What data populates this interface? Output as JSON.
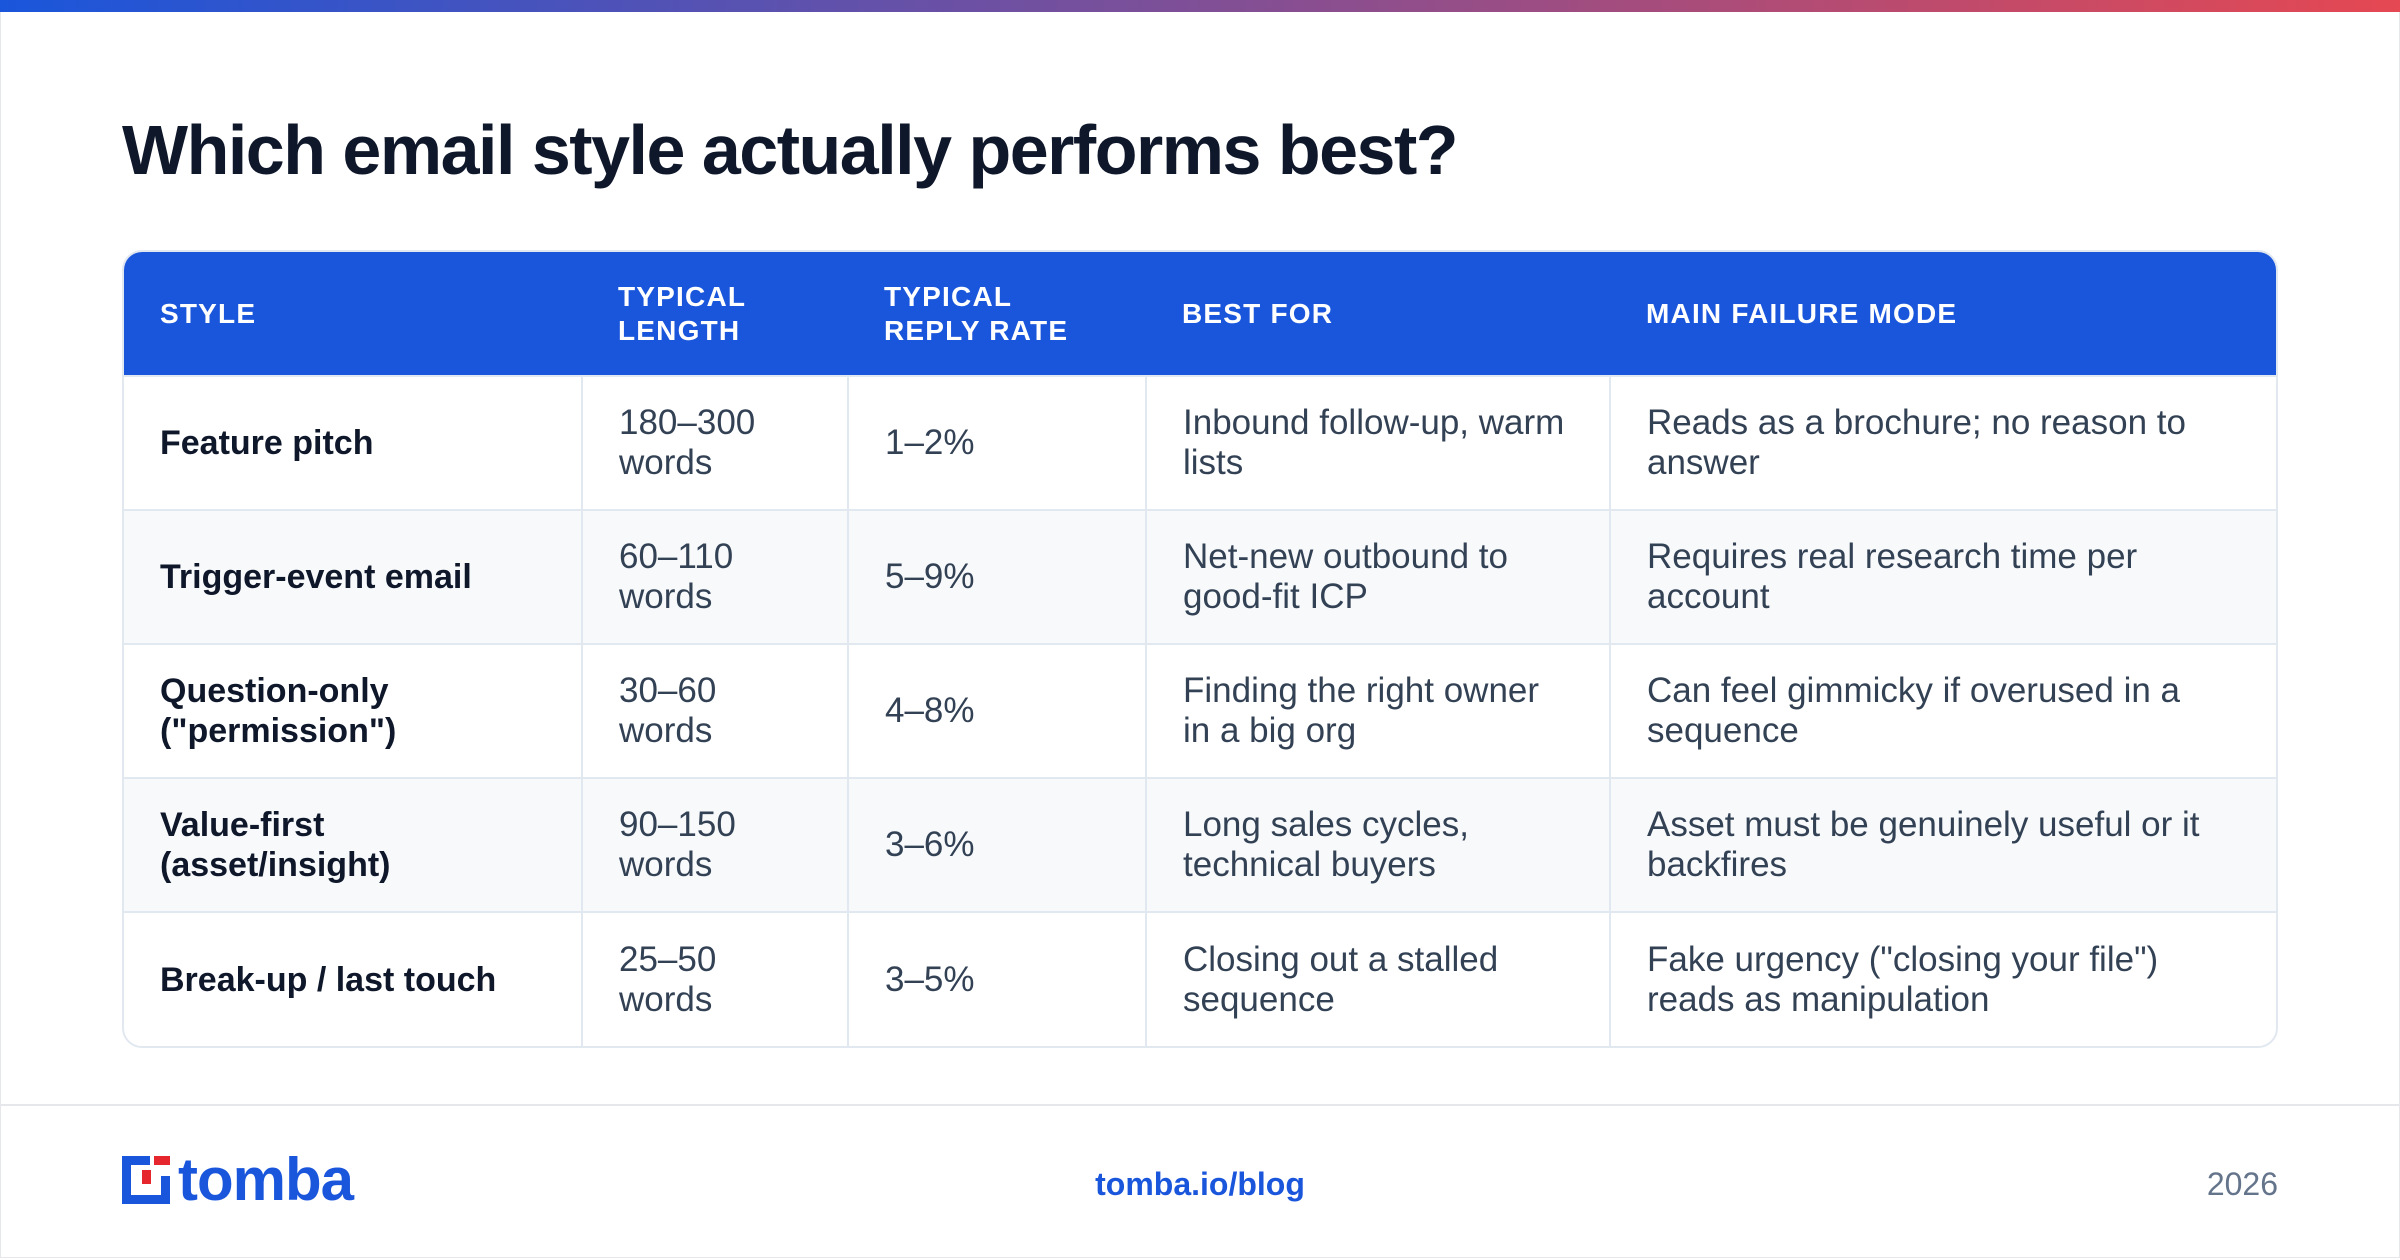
{
  "colors": {
    "accent": "#1a56db",
    "gradient_start": "#1a56db",
    "gradient_end": "#e54852",
    "logo_red": "#e5262d",
    "text_dark": "#0f172a",
    "text_body": "#334155"
  },
  "title": "Which email style actually performs best?",
  "table": {
    "headers": [
      "STYLE",
      "TYPICAL LENGTH",
      "TYPICAL REPLY RATE",
      "BEST FOR",
      "MAIN FAILURE MODE"
    ],
    "rows": [
      [
        "Feature pitch",
        "180–300 words",
        "1–2%",
        "Inbound follow-up, warm lists",
        "Reads as a brochure; no reason to answer"
      ],
      [
        "Trigger-event email",
        "60–110 words",
        "5–9%",
        "Net-new outbound to good-fit ICP",
        "Requires real research time per account"
      ],
      [
        "Question-only (\"permission\")",
        "30–60 words",
        "4–8%",
        "Finding the right owner in a big org",
        "Can feel gimmicky if overused in a sequence"
      ],
      [
        "Value-first (asset/insight)",
        "90–150 words",
        "3–6%",
        "Long sales cycles, technical buyers",
        "Asset must be genuinely useful or it backfires"
      ],
      [
        "Break-up / last touch",
        "25–50 words",
        "3–5%",
        "Closing out a stalled sequence",
        "Fake urgency (\"closing your file\") reads as manipulation"
      ]
    ]
  },
  "footer": {
    "logo_text": "tomba",
    "logo_icon": "tomba-logo-mark-icon",
    "link": "tomba.io/blog",
    "year": "2026"
  }
}
